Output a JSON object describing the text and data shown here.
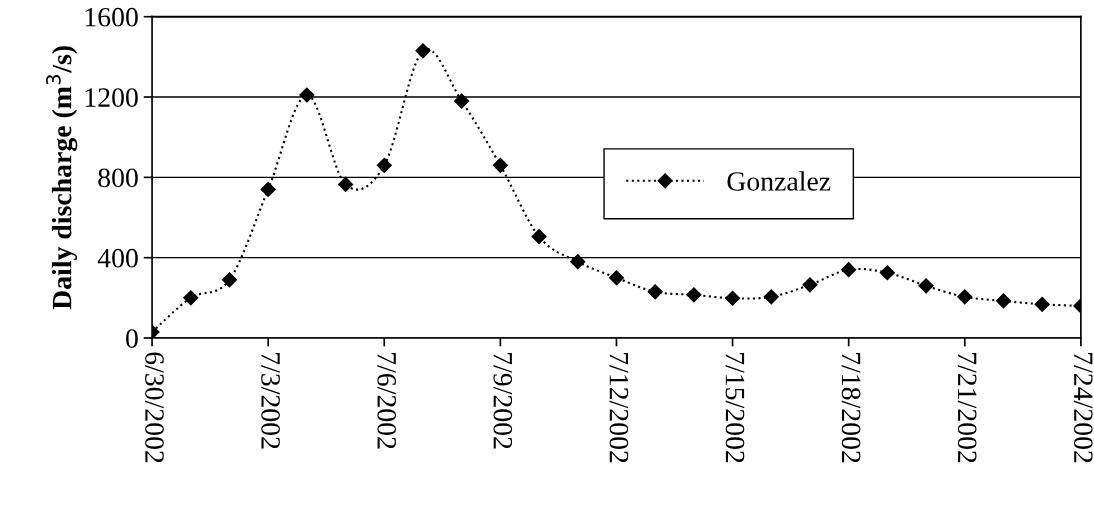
{
  "chart_data": {
    "type": "line",
    "ylabel": "Daily discharge (m$^{3}$/s)",
    "x": [
      "2002-06-30",
      "2002-07-01",
      "2002-07-02",
      "2002-07-03",
      "2002-07-04",
      "2002-07-05",
      "2002-07-06",
      "2002-07-07",
      "2002-07-08",
      "2002-07-09",
      "2002-07-10",
      "2002-07-11",
      "2002-07-12",
      "2002-07-13",
      "2002-07-14",
      "2002-07-15",
      "2002-07-16",
      "2002-07-17",
      "2002-07-18",
      "2002-07-19",
      "2002-07-20",
      "2002-07-21",
      "2002-07-22",
      "2002-07-23",
      "2002-07-24"
    ],
    "series": [
      {
        "name": "Gonzalez",
        "color": "#000000",
        "values": [
          30,
          200,
          290,
          740,
          1210,
          765,
          860,
          1430,
          1180,
          860,
          505,
          380,
          300,
          230,
          215,
          198,
          205,
          265,
          340,
          325,
          260,
          205,
          185,
          168,
          160
        ]
      }
    ],
    "xlim": [
      "2002-06-30",
      "2002-07-24"
    ],
    "xticks": [
      {
        "value": "2002-06-30",
        "label": "6/30/2002"
      },
      {
        "value": "2002-07-03",
        "label": "7/3/2002"
      },
      {
        "value": "2002-07-06",
        "label": "7/6/2002"
      },
      {
        "value": "2002-07-09",
        "label": "7/9/2002"
      },
      {
        "value": "2002-07-12",
        "label": "7/12/2002"
      },
      {
        "value": "2002-07-15",
        "label": "7/15/2002"
      },
      {
        "value": "2002-07-18",
        "label": "7/18/2002"
      },
      {
        "value": "2002-07-21",
        "label": "7/21/2002"
      },
      {
        "value": "2002-07-24",
        "label": "7/24/2002"
      }
    ],
    "ylim": [
      0,
      1600
    ],
    "yticks": [
      0,
      400,
      800,
      1200,
      1600
    ],
    "grid": "y",
    "legend": "right",
    "marker": "diamond",
    "line_style": "dotted"
  }
}
